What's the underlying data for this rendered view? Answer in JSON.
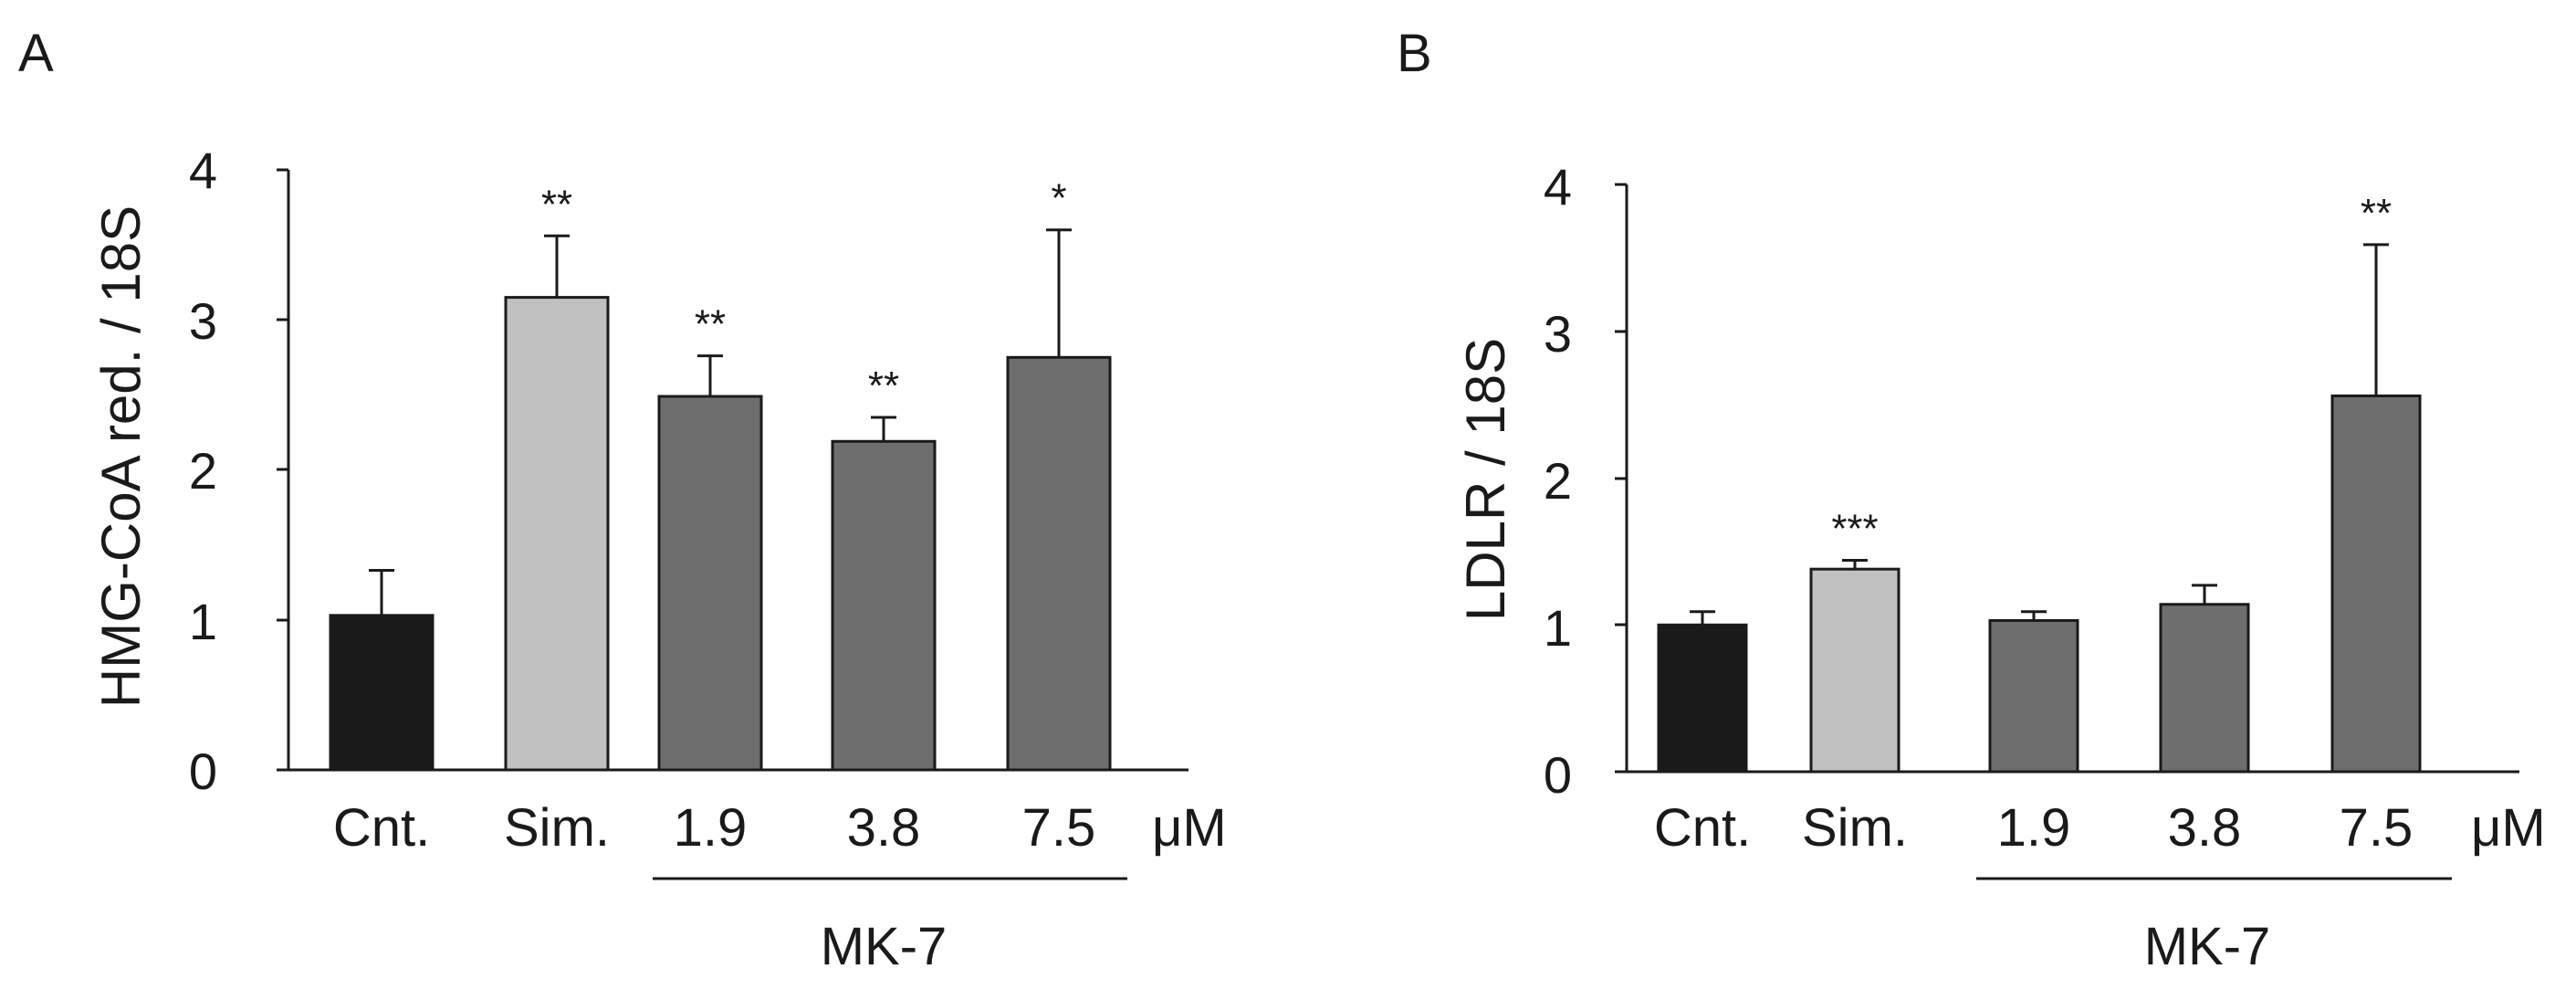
{
  "chart_data": [
    {
      "panel_label": "A",
      "type": "bar",
      "categories": [
        "Cnt.",
        "Sim.",
        "1.9",
        "3.8",
        "7.5"
      ],
      "values": [
        1.03,
        3.15,
        2.49,
        2.19,
        2.75
      ],
      "errors": [
        0.3,
        0.41,
        0.27,
        0.16,
        0.85
      ],
      "significance": [
        "",
        "**",
        "**",
        "**",
        "*"
      ],
      "bar_colors": [
        "#1a1a1a",
        "#c0c0c0",
        "#6e6e6e",
        "#6e6e6e",
        "#6e6e6e"
      ],
      "ylabel": "HMG-CoA red. / 18S",
      "yticks": [
        "0",
        "1",
        "2",
        "3",
        "4"
      ],
      "ylim": [
        0,
        4
      ],
      "unit_label": "μM",
      "group_label": "MK-7"
    },
    {
      "panel_label": "B",
      "type": "bar",
      "categories": [
        "Cnt.",
        "Sim.",
        "1.9",
        "3.8",
        "7.5"
      ],
      "values": [
        1.0,
        1.38,
        1.03,
        1.14,
        2.56
      ],
      "errors": [
        0.09,
        0.06,
        0.06,
        0.13,
        1.03
      ],
      "significance": [
        "",
        "***",
        "",
        "",
        "**"
      ],
      "bar_colors": [
        "#1a1a1a",
        "#c0c0c0",
        "#6e6e6e",
        "#6e6e6e",
        "#6e6e6e"
      ],
      "ylabel": "LDLR / 18S",
      "yticks": [
        "0",
        "1",
        "2",
        "3",
        "4"
      ],
      "ylim": [
        0,
        4
      ],
      "unit_label": "μM",
      "group_label": "MK-7"
    }
  ]
}
